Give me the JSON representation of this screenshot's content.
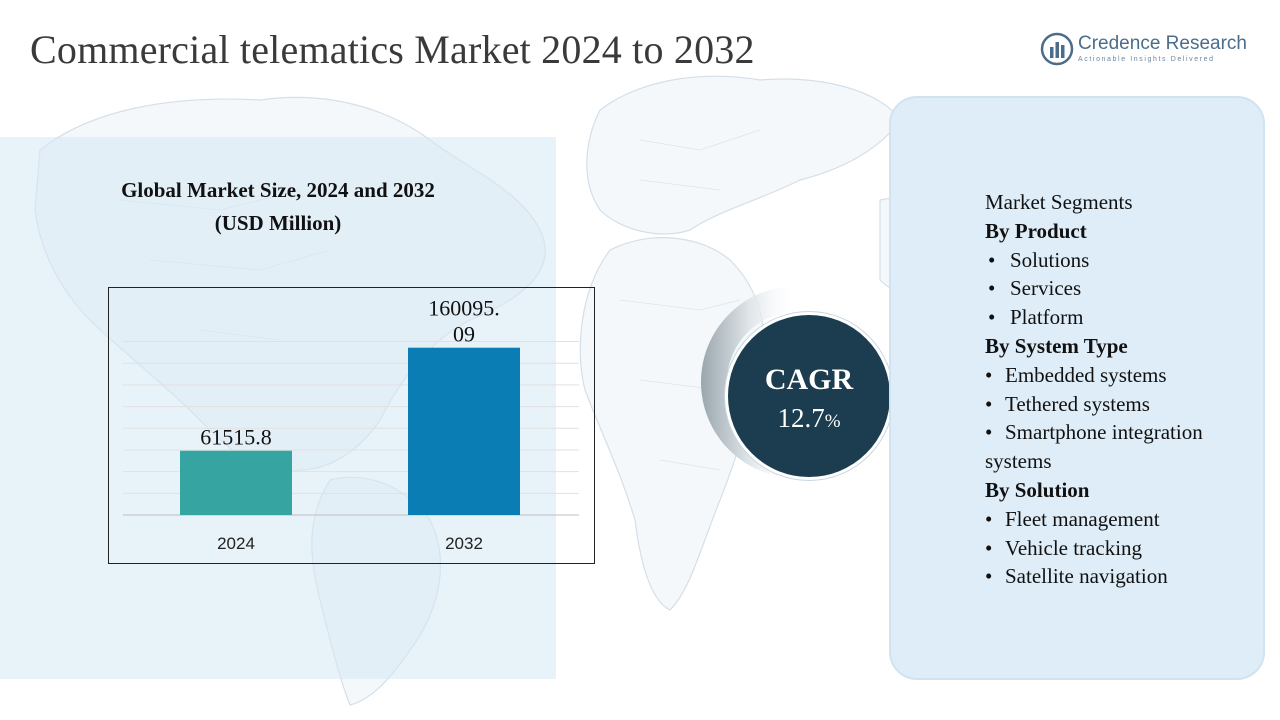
{
  "title": "Commercial telematics Market 2024 to 2032",
  "logo": {
    "name": "Credence Research",
    "tagline": "Actionable Insights Delivered",
    "icon": "bar-chart-logo-icon"
  },
  "colors": {
    "bar_2024": "#36a5a2",
    "bar_2032": "#0a7db5",
    "cagr_circle": "#1c3d4f",
    "segment_panel": "#deedf7"
  },
  "chart_data": {
    "type": "bar",
    "title": "Global Market Size, 2024 and 2032 (USD Million)",
    "title_lines": [
      "Global Market Size, 2024 and 2032",
      "(USD Million)"
    ],
    "categories": [
      "2024",
      "2032"
    ],
    "values": [
      61515.8,
      160095.09
    ],
    "value_labels": [
      "61515.8",
      "160095.09"
    ],
    "grid": true,
    "legend": "none"
  },
  "cagr": {
    "label": "CAGR",
    "value": "12.7",
    "unit": "%"
  },
  "segments": {
    "heading": "Market Segments",
    "groups": [
      {
        "title": "By Product",
        "items": [
          "Solutions",
          "Services",
          "Platform"
        ]
      },
      {
        "title": "By System Type",
        "items": [
          "Embedded systems",
          "Tethered systems",
          "Smartphone integration systems"
        ]
      },
      {
        "title": "By Solution",
        "items": [
          "Fleet management",
          "Vehicle tracking",
          "Satellite navigation"
        ]
      }
    ]
  }
}
